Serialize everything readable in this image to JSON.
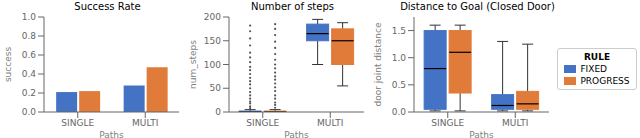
{
  "chart_data": [
    {
      "type": "bar",
      "title": "Success Rate",
      "x_label": "Paths",
      "y_label": "success",
      "categories": [
        "SINGLE",
        "MULTI"
      ],
      "series": [
        {
          "name": "FIXED",
          "color": "#4472C4",
          "values": [
            0.21,
            0.28
          ]
        },
        {
          "name": "PROGRESS",
          "color": "#E07B39",
          "values": [
            0.22,
            0.47
          ]
        }
      ],
      "ylim": [
        0,
        1.0
      ],
      "yticks": [
        {
          "value": 0,
          "label": "0.0"
        },
        0.2,
        0.4,
        0.6,
        0.8,
        {
          "value": 1.0,
          "label": "1.0"
        }
      ]
    },
    {
      "type": "box",
      "title": "Number of steps",
      "x_label": "Paths",
      "y_label": "num_steps",
      "categories": [
        "SINGLE",
        "MULTI"
      ],
      "series": [
        {
          "name": "FIXED",
          "color": "#4472C4",
          "boxes": [
            {
              "whislo": 0,
              "q1": 0,
              "med": 0,
              "q3": 2,
              "whishi": 5,
              "fliers": [
                8,
                12,
                18,
                22,
                28,
                35,
                42,
                50,
                58,
                65,
                72,
                80,
                88,
                95,
                105,
                115,
                125,
                140,
                155,
                170,
                182
              ]
            },
            {
              "whislo": 100,
              "q1": 150,
              "med": 165,
              "q3": 185,
              "whishi": 195,
              "fliers": []
            }
          ]
        },
        {
          "name": "PROGRESS",
          "color": "#E07B39",
          "boxes": [
            {
              "whislo": 0,
              "q1": 0,
              "med": 0,
              "q3": 2,
              "whishi": 5,
              "fliers": [
                9,
                15,
                20,
                28,
                35,
                44,
                52,
                60,
                68,
                75,
                83,
                92,
                100,
                110,
                122,
                135,
                148,
                162,
                175,
                185
              ]
            },
            {
              "whislo": 55,
              "q1": 100,
              "med": 150,
              "q3": 175,
              "whishi": 188,
              "fliers": []
            }
          ]
        }
      ],
      "ylim": [
        0,
        200
      ],
      "yticks": [
        0,
        50,
        100,
        150,
        200
      ]
    },
    {
      "type": "box",
      "title": "Distance to Goal (Closed Door)",
      "x_label": "Paths",
      "y_label": "door joint distance",
      "categories": [
        "SINGLE",
        "MULTI"
      ],
      "series": [
        {
          "name": "FIXED",
          "color": "#4472C4",
          "boxes": [
            {
              "whislo": 0.02,
              "q1": 0.05,
              "med": 0.8,
              "q3": 1.5,
              "whishi": 1.6,
              "fliers": []
            },
            {
              "whislo": 0.02,
              "q1": 0.05,
              "med": 0.12,
              "q3": 0.32,
              "whishi": 1.3,
              "fliers": []
            }
          ]
        },
        {
          "name": "PROGRESS",
          "color": "#E07B39",
          "boxes": [
            {
              "whislo": 0.02,
              "q1": 0.35,
              "med": 1.1,
              "q3": 1.5,
              "whishi": 1.6,
              "fliers": []
            },
            {
              "whislo": 0.02,
              "q1": 0.05,
              "med": 0.15,
              "q3": 0.38,
              "whishi": 1.25,
              "fliers": []
            }
          ]
        }
      ],
      "ylim": [
        0,
        1.75
      ],
      "yticks": [
        {
          "value": 0,
          "label": "0.0"
        },
        0.5,
        {
          "value": 1.0,
          "label": "1.0"
        },
        1.5
      ],
      "legend": "right",
      "legend_title": "RULE"
    }
  ]
}
